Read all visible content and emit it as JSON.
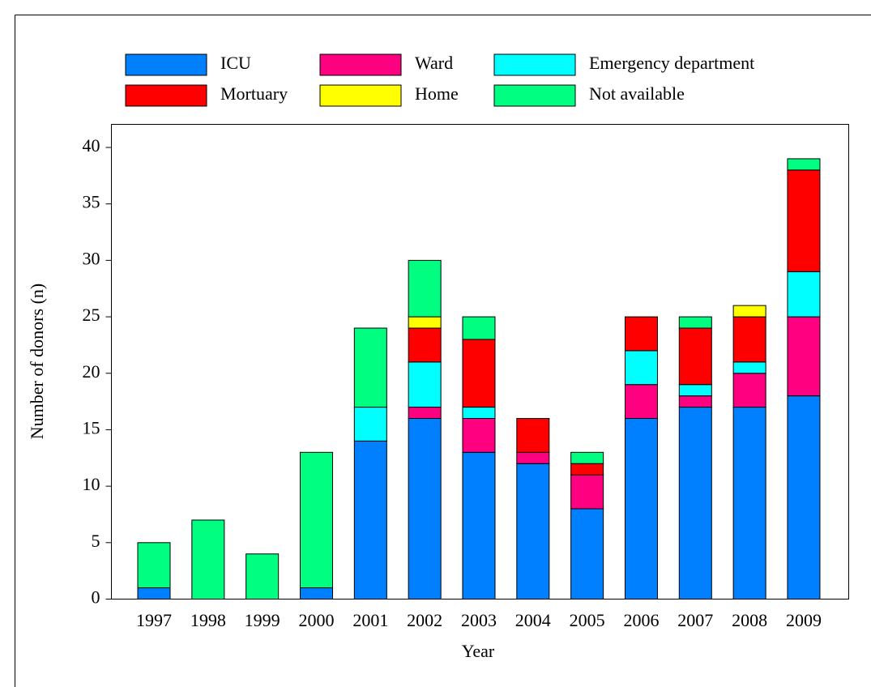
{
  "chart_data": {
    "type": "bar",
    "stacked": true,
    "x_label": "Year",
    "y_label": "Number of donors (n)",
    "categories": [
      "1997",
      "1998",
      "1999",
      "2000",
      "2001",
      "2002",
      "2003",
      "2004",
      "2005",
      "2006",
      "2007",
      "2008",
      "2009"
    ],
    "series": [
      {
        "name": "ICU",
        "color": "#0080ff",
        "values": [
          1,
          0,
          0,
          1,
          14,
          16,
          13,
          12,
          8,
          16,
          17,
          17,
          18
        ]
      },
      {
        "name": "Ward",
        "color": "#ff0080",
        "values": [
          0,
          0,
          0,
          0,
          0,
          1,
          3,
          1,
          3,
          3,
          1,
          3,
          7
        ]
      },
      {
        "name": "Emergency department",
        "color": "#00ffff",
        "values": [
          0,
          0,
          0,
          0,
          3,
          4,
          1,
          0,
          0,
          3,
          1,
          1,
          4
        ]
      },
      {
        "name": "Mortuary",
        "color": "#ff0000",
        "values": [
          0,
          0,
          0,
          0,
          0,
          3,
          6,
          3,
          1,
          3,
          5,
          4,
          9
        ]
      },
      {
        "name": "Home",
        "color": "#ffff00",
        "values": [
          0,
          0,
          0,
          0,
          0,
          1,
          0,
          0,
          0,
          0,
          0,
          1,
          0
        ]
      },
      {
        "name": "Not available",
        "color": "#00ff80",
        "values": [
          4,
          7,
          4,
          12,
          7,
          5,
          2,
          0,
          1,
          0,
          1,
          0,
          1
        ]
      }
    ],
    "ylim": [
      0,
      40
    ],
    "yticks": [
      0,
      5,
      10,
      15,
      20,
      25,
      30,
      35,
      40
    ],
    "grid": false
  }
}
